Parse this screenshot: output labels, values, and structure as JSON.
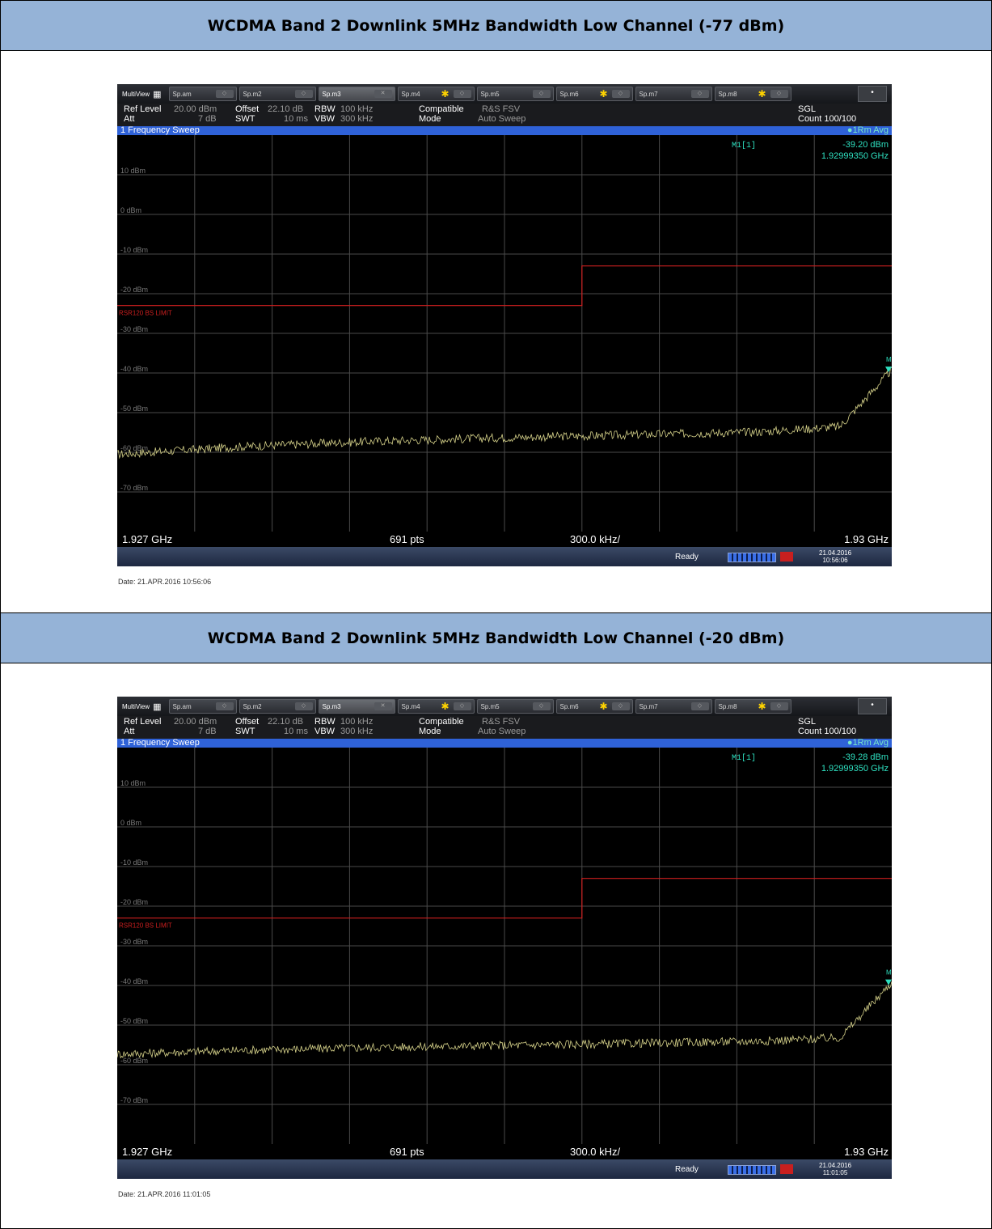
{
  "sections": [
    {
      "header": "WCDMA Band 2 Downlink 5MHz Bandwidth Low Channel (-77 dBm)",
      "instrument": {
        "tabs": [
          "Sp.am",
          "Sp.m2",
          "Sp.m3",
          "Sp.m4",
          "Sp.m5",
          "Sp.m6",
          "Sp.m7",
          "Sp.m8"
        ],
        "multiview": "MultiView",
        "settings": {
          "ref_level_label": "Ref Level",
          "ref_level_value": "20.00 dBm",
          "offset_label": "Offset",
          "offset_value": "22.10 dB",
          "rbw_label": "RBW",
          "rbw_value": "100 kHz",
          "compatible_label": "Compatible",
          "compatible_value": "R&S FSV",
          "att_label": "Att",
          "att_value": "7 dB",
          "swt_label": "SWT",
          "swt_value": "10 ms",
          "vbw_label": "VBW",
          "vbw_value": "300 kHz",
          "mode_label": "Mode",
          "mode_value": "Auto Sweep",
          "sgl": "SGL",
          "count": "Count 100/100"
        },
        "sweep_title": "1 Frequency Sweep",
        "trace_label": "●1Rm Avg",
        "marker": {
          "name": "M1[1]",
          "level": "-39.20 dBm",
          "freq": "1.92999350 GHz",
          "tag": "M"
        },
        "limit_label": "RSR120 BS LIMIT",
        "bottom": {
          "start": "1.927 GHz",
          "points": "691 pts",
          "span_div": "300.0 kHz/",
          "stop": "1.93 GHz"
        },
        "status": {
          "ready": "Ready",
          "date": "21.04.2016",
          "time": "10:56:06"
        }
      },
      "caption": "Date: 21.APR.2016  10:56:06",
      "chart_data": {
        "type": "line",
        "x_range_ghz": [
          1.927,
          1.93
        ],
        "ylim": [
          -80,
          20
        ],
        "y_ticks": [
          "10 dBm",
          "0 dBm",
          "-10 dBm",
          "-20 dBm",
          "-30 dBm",
          "-40 dBm",
          "-50 dBm",
          "-60 dBm",
          "-70 dBm"
        ],
        "limit_line": {
          "segments": [
            {
              "x_start": 1.927,
              "x_end": 1.9288,
              "level": -23
            },
            {
              "x_start": 1.9288,
              "x_end": 1.93,
              "level": -13
            }
          ]
        },
        "trace": {
          "x": [
            1.927,
            1.9275,
            1.928,
            1.9285,
            1.929,
            1.9295,
            1.9298,
            1.93
          ],
          "y": [
            -60.5,
            -58.5,
            -57.2,
            -56.3,
            -55.6,
            -54.8,
            -53.5,
            -39.2
          ]
        },
        "colors": {
          "trace": "#d6d28a",
          "limit": "#cc1f1f",
          "marker": "#2ee0c0",
          "grid": "#4a4a4a"
        }
      }
    },
    {
      "header": "WCDMA Band 2 Downlink 5MHz Bandwidth Low Channel (-20 dBm)",
      "instrument": {
        "tabs": [
          "Sp.am",
          "Sp.m2",
          "Sp.m3",
          "Sp.m4",
          "Sp.m5",
          "Sp.m6",
          "Sp.m7",
          "Sp.m8"
        ],
        "multiview": "MultiView",
        "settings": {
          "ref_level_label": "Ref Level",
          "ref_level_value": "20.00 dBm",
          "offset_label": "Offset",
          "offset_value": "22.10 dB",
          "rbw_label": "RBW",
          "rbw_value": "100 kHz",
          "compatible_label": "Compatible",
          "compatible_value": "R&S FSV",
          "att_label": "Att",
          "att_value": "7 dB",
          "swt_label": "SWT",
          "swt_value": "10 ms",
          "vbw_label": "VBW",
          "vbw_value": "300 kHz",
          "mode_label": "Mode",
          "mode_value": "Auto Sweep",
          "sgl": "SGL",
          "count": "Count 100/100"
        },
        "sweep_title": "1 Frequency Sweep",
        "trace_label": "●1Rm Avg",
        "marker": {
          "name": "M1[1]",
          "level": "-39.28 dBm",
          "freq": "1.92999350 GHz",
          "tag": "M"
        },
        "limit_label": "RSR120 BS LIMIT",
        "bottom": {
          "start": "1.927 GHz",
          "points": "691 pts",
          "span_div": "300.0 kHz/",
          "stop": "1.93 GHz"
        },
        "status": {
          "ready": "Ready",
          "date": "21.04.2016",
          "time": "11:01:05"
        }
      },
      "caption": "Date: 21.APR.2016  11:01:05",
      "chart_data": {
        "type": "line",
        "x_range_ghz": [
          1.927,
          1.93
        ],
        "ylim": [
          -80,
          20
        ],
        "y_ticks": [
          "10 dBm",
          "0 dBm",
          "-10 dBm",
          "-20 dBm",
          "-30 dBm",
          "-40 dBm",
          "-50 dBm",
          "-60 dBm",
          "-70 dBm"
        ],
        "limit_line": {
          "segments": [
            {
              "x_start": 1.927,
              "x_end": 1.9288,
              "level": -23
            },
            {
              "x_start": 1.9288,
              "x_end": 1.93,
              "level": -13
            }
          ]
        },
        "trace": {
          "x": [
            1.927,
            1.9275,
            1.928,
            1.9285,
            1.929,
            1.9295,
            1.9298,
            1.93
          ],
          "y": [
            -57.3,
            -56.3,
            -55.6,
            -55.1,
            -54.6,
            -54.0,
            -53.2,
            -39.3
          ]
        },
        "colors": {
          "trace": "#d6d28a",
          "limit": "#cc1f1f",
          "marker": "#2ee0c0",
          "grid": "#4a4a4a"
        }
      }
    }
  ]
}
